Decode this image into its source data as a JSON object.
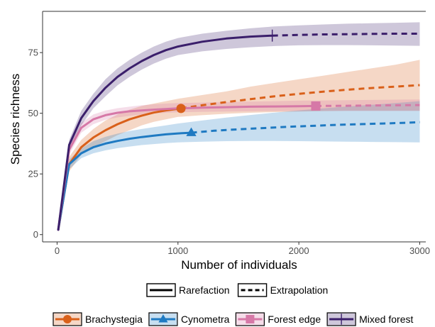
{
  "chart_data": {
    "type": "line",
    "xlabel": "Number of individuals",
    "ylabel": "Species richness",
    "xlim": [
      -120,
      3050
    ],
    "ylim": [
      -3,
      92
    ],
    "x_ticks": [
      0,
      1000,
      2000,
      3000
    ],
    "y_ticks": [
      0,
      25,
      50,
      75
    ],
    "grid": false,
    "legend_linetype": {
      "position": "bottom",
      "entries": [
        {
          "label": "Rarefaction",
          "style": "solid"
        },
        {
          "label": "Extrapolation",
          "style": "dashed"
        }
      ]
    },
    "legend_series": {
      "position": "bottom"
    },
    "series": [
      {
        "name": "Brachystegia",
        "color": "#d9601a",
        "marker": "circle",
        "observed": {
          "x": 1025,
          "y": 52
        },
        "rarefaction": {
          "x": [
            10,
            100,
            200,
            300,
            400,
            500,
            600,
            700,
            800,
            900,
            1025
          ],
          "y": [
            2,
            29,
            36,
            40,
            43,
            45.5,
            47.5,
            49,
            50.3,
            51.2,
            52
          ]
        },
        "extrapolation": {
          "x": [
            1025,
            1200,
            1400,
            1600,
            1800,
            2000,
            2200,
            2400,
            2600,
            2800,
            3000
          ],
          "y": [
            52,
            53.3,
            54.6,
            55.8,
            57,
            58,
            58.9,
            59.7,
            60.4,
            61,
            61.6
          ]
        },
        "ci_lower": [
          2,
          26,
          33,
          36,
          38.5,
          41,
          43,
          45,
          46.5,
          47.5,
          48.5,
          49.2,
          49.8,
          50.2,
          50.5,
          50.7,
          50.9,
          51,
          51,
          51,
          51
        ],
        "ci_upper": [
          2,
          32,
          39,
          43.5,
          47,
          49.5,
          51.5,
          53,
          54,
          55,
          56,
          57.5,
          59,
          61,
          62.5,
          64,
          65.5,
          67,
          68.5,
          70,
          72
        ]
      },
      {
        "name": "Cynometra",
        "color": "#1f7ac2",
        "marker": "triangle",
        "observed": {
          "x": 1110,
          "y": 42
        },
        "rarefaction": {
          "x": [
            10,
            100,
            200,
            300,
            400,
            500,
            600,
            700,
            800,
            900,
            1000,
            1110
          ],
          "y": [
            2,
            29,
            33.5,
            36,
            37.5,
            38.6,
            39.5,
            40.2,
            40.8,
            41.3,
            41.7,
            42
          ]
        },
        "extrapolation": {
          "x": [
            1110,
            1300,
            1500,
            1700,
            1900,
            2100,
            2300,
            2500,
            2700,
            2900,
            3000
          ],
          "y": [
            42,
            42.8,
            43.4,
            43.9,
            44.4,
            44.8,
            45.2,
            45.5,
            45.8,
            46.1,
            46.3
          ]
        },
        "ci_lower": [
          2,
          27,
          31.5,
          33.5,
          34.7,
          35.6,
          36.3,
          36.9,
          37.3,
          37.7,
          38,
          38.3,
          38.5,
          38.6,
          38.6,
          38.5,
          38.4,
          38.3,
          38.2,
          38.1,
          38
        ],
        "ci_upper": [
          2,
          31,
          35.5,
          38.5,
          40.3,
          41.6,
          42.7,
          43.5,
          44.3,
          45,
          45.8,
          47,
          48.2,
          49.3,
          50.3,
          51.2,
          52,
          52.8,
          53.5,
          54.2,
          55
        ]
      },
      {
        "name": "Forest edge",
        "color": "#d678a7",
        "marker": "square",
        "observed": {
          "x": 2140,
          "y": 53
        },
        "rarefaction": {
          "x": [
            10,
            100,
            200,
            300,
            400,
            500,
            600,
            800,
            1000,
            1200,
            1400,
            1600,
            1800,
            2000,
            2140
          ],
          "y": [
            2,
            35,
            44,
            47.5,
            49.2,
            50.2,
            50.8,
            51.5,
            52,
            52.3,
            52.5,
            52.7,
            52.8,
            52.9,
            53
          ]
        },
        "extrapolation": {
          "x": [
            2140,
            2400,
            2600,
            2800,
            3000
          ],
          "y": [
            53,
            53.1,
            53.2,
            53.3,
            53.4
          ]
        },
        "ci_lower": [
          2,
          33,
          42,
          45.5,
          47.3,
          48.3,
          48.9,
          49.5,
          49.9,
          50.2,
          50.4,
          50.6,
          50.7,
          50.8,
          50.9,
          50.9,
          51,
          51,
          51,
          51,
          51
        ],
        "ci_upper": [
          2,
          37,
          46,
          49.5,
          51.1,
          52.1,
          52.7,
          53.3,
          53.7,
          54,
          54.2,
          54.4,
          54.6,
          54.8,
          55,
          55.2,
          55.3,
          55.4,
          55.5,
          55.6,
          55.7
        ]
      },
      {
        "name": "Mixed forest",
        "color": "#3b1f6b",
        "marker": "plus",
        "observed": {
          "x": 1780,
          "y": 82
        },
        "rarefaction": {
          "x": [
            10,
            100,
            200,
            300,
            400,
            500,
            600,
            700,
            800,
            900,
            1000,
            1200,
            1400,
            1600,
            1780
          ],
          "y": [
            2,
            37,
            48,
            55,
            60.5,
            65,
            68.5,
            71.5,
            74,
            76,
            77.5,
            79.5,
            80.8,
            81.6,
            82
          ]
        },
        "extrapolation": {
          "x": [
            1780,
            2000,
            2200,
            2400,
            2600,
            2800,
            3000
          ],
          "y": [
            82,
            82.3,
            82.5,
            82.6,
            82.7,
            82.8,
            82.8
          ]
        },
        "ci_lower": [
          2,
          35,
          45,
          52,
          57,
          61.5,
          65,
          68,
          70.5,
          72.5,
          74,
          75.5,
          76.5,
          77.2,
          77.7,
          78,
          78.1,
          78.1,
          78,
          77.9,
          77.8
        ],
        "ci_upper": [
          2,
          39,
          51,
          58,
          64,
          68.5,
          72,
          75,
          77.5,
          79.5,
          81,
          82.8,
          84,
          85,
          85.8,
          86.2,
          86.6,
          86.9,
          87.1,
          87.3,
          87.5
        ]
      }
    ],
    "ci_x": [
      10,
      100,
      200,
      300,
      400,
      500,
      600,
      700,
      800,
      900,
      1000,
      1200,
      1400,
      1600,
      1800,
      2000,
      2200,
      2400,
      2600,
      2800,
      3000
    ]
  }
}
